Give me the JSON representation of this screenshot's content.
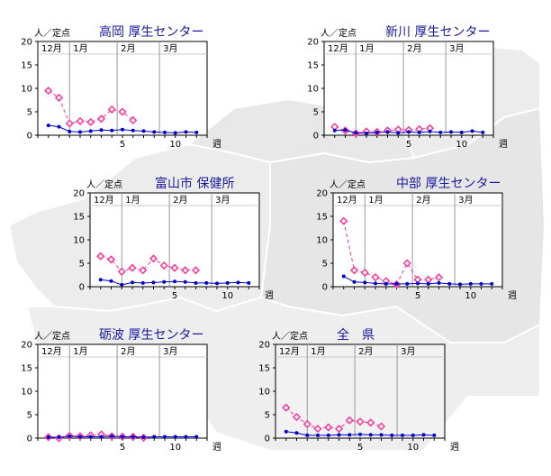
{
  "colors": {
    "background_map": "#e9e9e9",
    "map_outline": "#ffffff",
    "series_current": "#0000cc",
    "series_previous": "#ff3399",
    "title": "#1a1aa0",
    "month_line": "#999999",
    "highlight_panel_bg": "#f2f2f2"
  },
  "chart_data": [
    {
      "type": "line",
      "title": "高岡 厚生センター",
      "ylabel": "人／定点",
      "xlabel": "週",
      "ylim": [
        0,
        20
      ],
      "yticks": [
        0,
        5,
        10,
        15,
        20
      ],
      "xticks": [
        5,
        10
      ],
      "months": [
        "12月",
        "1月",
        "2月",
        "3月"
      ],
      "x_current": [
        -2,
        -1,
        0,
        1,
        2,
        3,
        4,
        5,
        6,
        7,
        8,
        9,
        10,
        11,
        12
      ],
      "series": [
        {
          "values": [
            2.1,
            1.8,
            0.8,
            0.7,
            0.9,
            1.1,
            1.0,
            1.2,
            1.0,
            0.9,
            0.7,
            0.6,
            0.5,
            0.7,
            0.6
          ]
        },
        {
          "x": [
            -2,
            -1,
            0,
            1,
            2,
            3,
            4,
            5,
            6,
            7
          ],
          "values": [
            9.5,
            8.0,
            2.5,
            3.0,
            2.8,
            3.5,
            5.5,
            5.0,
            3.2,
            null
          ]
        }
      ]
    },
    {
      "type": "line",
      "title": "新川 厚生センター",
      "ylabel": "人／定点",
      "xlabel": "週",
      "ylim": [
        0,
        20
      ],
      "yticks": [
        0,
        5,
        10,
        15,
        20
      ],
      "xticks": [
        5,
        10
      ],
      "months": [
        "12月",
        "1月",
        "2月",
        "3月"
      ],
      "x_current": [
        -2,
        -1,
        0,
        1,
        2,
        3,
        4,
        5,
        6,
        7,
        8,
        9,
        10,
        11,
        12
      ],
      "series": [
        {
          "values": [
            1.0,
            1.1,
            0.5,
            0.4,
            0.6,
            0.7,
            0.5,
            0.7,
            0.6,
            0.8,
            0.6,
            0.7,
            0.6,
            0.9,
            0.6
          ]
        },
        {
          "x": [
            -2,
            -1,
            0,
            1,
            2,
            3,
            4,
            5,
            6,
            7
          ],
          "values": [
            1.8,
            1.0,
            0.4,
            0.8,
            0.7,
            1.0,
            1.2,
            1.1,
            1.3,
            1.5
          ]
        }
      ]
    },
    {
      "type": "line",
      "title": "富山市 保健所",
      "ylabel": "人／定点",
      "xlabel": "週",
      "ylim": [
        0,
        20
      ],
      "yticks": [
        0,
        5,
        10,
        15,
        20
      ],
      "xticks": [
        5,
        10
      ],
      "months": [
        "12月",
        "1月",
        "2月",
        "3月"
      ],
      "x_current": [
        -2,
        -1,
        0,
        1,
        2,
        3,
        4,
        5,
        6,
        7,
        8,
        9,
        10,
        11,
        12
      ],
      "series": [
        {
          "values": [
            1.5,
            1.2,
            0.4,
            0.9,
            0.8,
            0.9,
            1.0,
            1.1,
            1.0,
            0.8,
            0.8,
            0.7,
            0.8,
            0.9,
            0.8
          ]
        },
        {
          "x": [
            -2,
            -1,
            0,
            1,
            2,
            3,
            4,
            5,
            6,
            7
          ],
          "values": [
            6.5,
            5.8,
            3.2,
            4.0,
            3.5,
            6.0,
            4.5,
            4.0,
            3.5,
            3.5
          ]
        }
      ]
    },
    {
      "type": "line",
      "title": "中部 厚生センター",
      "ylabel": "人／定点",
      "xlabel": "週",
      "ylim": [
        0,
        20
      ],
      "yticks": [
        0,
        5,
        10,
        15,
        20
      ],
      "xticks": [
        5,
        10
      ],
      "months": [
        "12月",
        "1月",
        "2月",
        "3月"
      ],
      "x_current": [
        -2,
        -1,
        0,
        1,
        2,
        3,
        4,
        5,
        6,
        7,
        8,
        9,
        10,
        11,
        12
      ],
      "series": [
        {
          "values": [
            2.2,
            1.0,
            0.9,
            0.7,
            0.6,
            0.6,
            0.6,
            0.7,
            0.6,
            0.8,
            0.6,
            0.5,
            0.6,
            0.6,
            0.6
          ]
        },
        {
          "x": [
            -2,
            -1,
            0,
            1,
            2,
            3,
            4,
            5,
            6,
            7
          ],
          "values": [
            14.0,
            3.5,
            3.0,
            2.0,
            1.2,
            0.5,
            5.0,
            1.5,
            1.5,
            2.0
          ]
        }
      ]
    },
    {
      "type": "line",
      "title": "砺波 厚生センター",
      "ylabel": "人／定点",
      "xlabel": "週",
      "ylim": [
        0,
        20
      ],
      "yticks": [
        0,
        5,
        10,
        15,
        20
      ],
      "xticks": [
        5,
        10
      ],
      "months": [
        "12月",
        "1月",
        "2月",
        "3月"
      ],
      "x_current": [
        -2,
        -1,
        0,
        1,
        2,
        3,
        4,
        5,
        6,
        7,
        8,
        9,
        10,
        11,
        12
      ],
      "series": [
        {
          "values": [
            0.2,
            0.2,
            0.4,
            0.3,
            0.3,
            0.3,
            0.4,
            0.3,
            0.3,
            0.2,
            0.3,
            0.3,
            0.3,
            0.3,
            0.3
          ]
        },
        {
          "x": [
            -2,
            -1,
            0,
            1,
            2,
            3,
            4,
            5,
            6,
            7
          ],
          "values": [
            0.2,
            0.0,
            0.5,
            0.4,
            0.6,
            0.8,
            0.4,
            0.3,
            0.3,
            0.1
          ]
        }
      ]
    },
    {
      "type": "line",
      "title": "全　県",
      "ylabel": "人／定点",
      "xlabel": "週",
      "ylim": [
        0,
        20
      ],
      "yticks": [
        0,
        5,
        10,
        15,
        20
      ],
      "xticks": [
        5,
        10
      ],
      "months": [
        "12月",
        "1月",
        "2月",
        "3月"
      ],
      "highlight": true,
      "x_current": [
        -2,
        -1,
        0,
        1,
        2,
        3,
        4,
        5,
        6,
        7,
        8,
        9,
        10,
        11,
        12
      ],
      "series": [
        {
          "values": [
            1.4,
            1.1,
            0.6,
            0.6,
            0.6,
            0.7,
            0.7,
            0.8,
            0.7,
            0.7,
            0.6,
            0.6,
            0.6,
            0.7,
            0.6
          ]
        },
        {
          "x": [
            -2,
            -1,
            0,
            1,
            2,
            3,
            4,
            5,
            6,
            7
          ],
          "values": [
            6.5,
            4.5,
            3.0,
            2.0,
            2.3,
            2.0,
            3.8,
            3.5,
            3.3,
            2.5
          ]
        }
      ]
    }
  ]
}
